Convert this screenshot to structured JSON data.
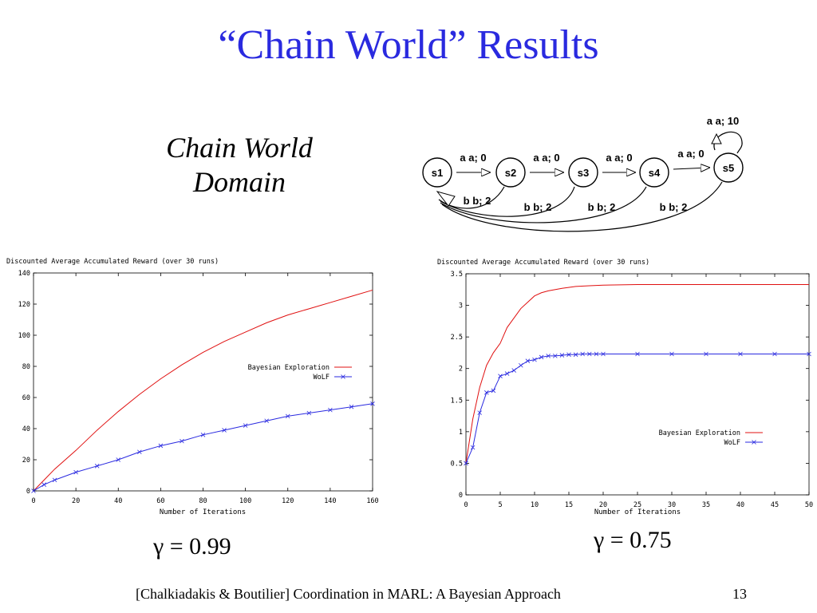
{
  "slide": {
    "title": "“Chain World” Results",
    "subtitle_line1": "Chain World",
    "subtitle_line2": "Domain",
    "gamma1": "γ = 0.99",
    "gamma2": "γ = 0.75",
    "footer": "[Chalkiadakis & Boutilier] Coordination in MARL: A Bayesian Approach",
    "page_number": "13"
  },
  "diagram": {
    "states": [
      "s1",
      "s2",
      "s3",
      "s4",
      "s5"
    ],
    "forward_labels": [
      "a a; 0",
      "a a; 0",
      "a a; 0",
      "a a; 0"
    ],
    "self_loop_label": "a a; 10",
    "back_labels": [
      "b b; 2",
      "b b; 2",
      "b b; 2",
      "b b; 2"
    ]
  },
  "colors": {
    "title": "#2a2adf",
    "bayesian": "#e01010",
    "wolf": "#2a2ae0"
  },
  "chart_data": [
    {
      "type": "line",
      "title": "Discounted Average Accumulated Reward (over 30 runs)",
      "xlabel": "Number of Iterations",
      "ylabel": "",
      "xlim": [
        0,
        160
      ],
      "ylim": [
        0,
        140
      ],
      "xticks": [
        0,
        20,
        40,
        60,
        80,
        100,
        120,
        140,
        160
      ],
      "yticks": [
        0,
        20,
        40,
        60,
        80,
        100,
        120,
        140
      ],
      "legend_position": "right",
      "series": [
        {
          "name": "Bayesian Exploration",
          "x": [
            0,
            5,
            10,
            20,
            30,
            40,
            50,
            60,
            70,
            80,
            90,
            100,
            110,
            120,
            130,
            140,
            150,
            160
          ],
          "y": [
            0,
            7,
            14,
            26,
            39,
            51,
            62,
            72,
            81,
            89,
            96,
            102,
            108,
            113,
            117,
            121,
            125,
            129
          ]
        },
        {
          "name": "WoLF",
          "x": [
            0,
            5,
            10,
            20,
            30,
            40,
            50,
            60,
            70,
            80,
            90,
            100,
            110,
            120,
            130,
            140,
            150,
            160
          ],
          "y": [
            0,
            4,
            7,
            12,
            16,
            20,
            25,
            29,
            32,
            36,
            39,
            42,
            45,
            48,
            50,
            52,
            54,
            56
          ]
        }
      ]
    },
    {
      "type": "line",
      "title": "Discounted Average Accumulated Reward (over 30 runs)",
      "xlabel": "Number of Iterations",
      "ylabel": "",
      "xlim": [
        0,
        50
      ],
      "ylim": [
        0,
        3.5
      ],
      "xticks": [
        0,
        5,
        10,
        15,
        20,
        25,
        30,
        35,
        40,
        45,
        50
      ],
      "yticks": [
        0,
        0.5,
        1,
        1.5,
        2,
        2.5,
        3,
        3.5
      ],
      "legend_position": "bottom-right",
      "series": [
        {
          "name": "Bayesian Exploration",
          "x": [
            0,
            1,
            2,
            3,
            4,
            5,
            6,
            7,
            8,
            9,
            10,
            11,
            12,
            14,
            16,
            18,
            20,
            25,
            30,
            40,
            50
          ],
          "y": [
            0.5,
            1.2,
            1.7,
            2.05,
            2.25,
            2.4,
            2.65,
            2.8,
            2.95,
            3.05,
            3.15,
            3.2,
            3.23,
            3.27,
            3.3,
            3.31,
            3.32,
            3.33,
            3.33,
            3.33,
            3.33
          ]
        },
        {
          "name": "WoLF",
          "x": [
            0,
            1,
            2,
            3,
            4,
            5,
            6,
            7,
            8,
            9,
            10,
            11,
            12,
            13,
            14,
            15,
            16,
            17,
            18,
            19,
            20,
            25,
            30,
            35,
            40,
            45,
            50
          ],
          "y": [
            0.5,
            0.75,
            1.3,
            1.62,
            1.65,
            1.88,
            1.92,
            1.97,
            2.05,
            2.12,
            2.14,
            2.18,
            2.2,
            2.2,
            2.21,
            2.22,
            2.22,
            2.23,
            2.23,
            2.23,
            2.23,
            2.23,
            2.23,
            2.23,
            2.23,
            2.23,
            2.23
          ]
        }
      ]
    }
  ]
}
